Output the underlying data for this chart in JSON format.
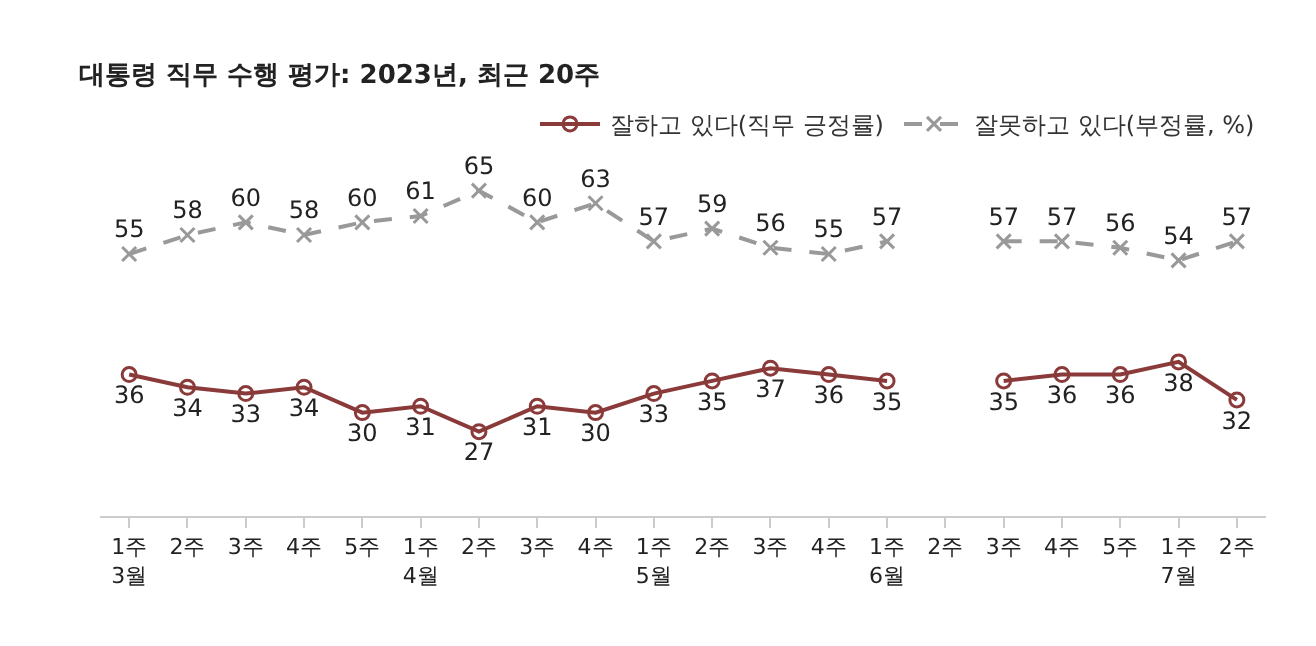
{
  "chart_data": {
    "type": "line",
    "title": "대통령 직무 수행 평가: 2023년, 최근 20주",
    "categories": [
      "1주\n3월",
      "2주",
      "3주",
      "4주",
      "5주",
      "1주\n4월",
      "2주",
      "3주",
      "4주",
      "1주\n5월",
      "2주",
      "3주",
      "4주",
      "1주\n6월",
      "2주",
      "3주",
      "4주",
      "5주",
      "1주\n7월",
      "2주"
    ],
    "series": [
      {
        "name": "잘하고 있다(직무 긍정률)",
        "color": "#8b3a3a",
        "marker": "circle",
        "line_style": "solid",
        "values": [
          36,
          34,
          33,
          34,
          30,
          31,
          27,
          31,
          30,
          33,
          35,
          37,
          36,
          35,
          null,
          35,
          36,
          36,
          38,
          32
        ]
      },
      {
        "name": "잘못하고 있다(부정률, %)",
        "color": "#999999",
        "marker": "cross",
        "line_style": "dashed",
        "values": [
          55,
          58,
          60,
          58,
          60,
          61,
          65,
          60,
          63,
          57,
          59,
          56,
          55,
          57,
          null,
          57,
          57,
          56,
          54,
          57
        ]
      }
    ],
    "data_labels": true,
    "legend": "top right"
  }
}
